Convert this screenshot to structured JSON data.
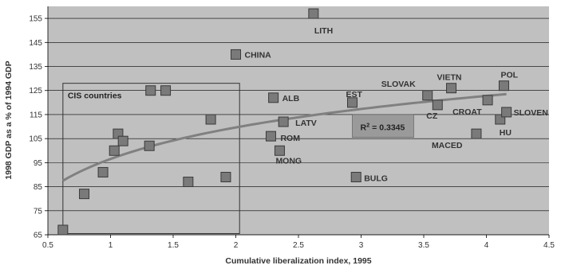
{
  "chart_data": {
    "type": "scatter",
    "xlabel": "Cumulative liberalization index, 1995",
    "ylabel": "1998 GDP as a % of 1994 GDP",
    "xlim": [
      0.5,
      4.5
    ],
    "ylim": [
      65,
      160
    ],
    "xticks": [
      "0.5",
      "1",
      "1.5",
      "2",
      "2.5",
      "3",
      "3.5",
      "4",
      "4.5"
    ],
    "yticks": [
      "65",
      "75",
      "85",
      "95",
      "105",
      "115",
      "125",
      "135",
      "145",
      "155"
    ],
    "xtick_values": [
      0.5,
      1,
      1.5,
      2,
      2.5,
      3,
      3.5,
      4,
      4.5
    ],
    "ytick_values": [
      65,
      75,
      85,
      95,
      105,
      115,
      125,
      135,
      145,
      155
    ],
    "grid": "horizontal",
    "colors": {
      "plot_background": "#c0c0c0",
      "marker_fill": "#7a7a7a",
      "marker_edge": "#3a3a3a",
      "trend_line": "#808080",
      "r2_box": "#9a9a9a"
    },
    "points": [
      {
        "x": 0.62,
        "y": 67,
        "label": ""
      },
      {
        "x": 0.79,
        "y": 82,
        "label": ""
      },
      {
        "x": 0.94,
        "y": 91,
        "label": ""
      },
      {
        "x": 1.03,
        "y": 100,
        "label": ""
      },
      {
        "x": 1.06,
        "y": 107,
        "label": ""
      },
      {
        "x": 1.1,
        "y": 104,
        "label": ""
      },
      {
        "x": 1.31,
        "y": 102,
        "label": ""
      },
      {
        "x": 1.32,
        "y": 125,
        "label": ""
      },
      {
        "x": 1.44,
        "y": 125,
        "label": ""
      },
      {
        "x": 1.62,
        "y": 87,
        "label": ""
      },
      {
        "x": 1.8,
        "y": 113,
        "label": ""
      },
      {
        "x": 1.92,
        "y": 89,
        "label": ""
      },
      {
        "x": 2.0,
        "y": 140,
        "label": "CHINA"
      },
      {
        "x": 2.3,
        "y": 122,
        "label": "ALB"
      },
      {
        "x": 2.28,
        "y": 106,
        "label": "ROM"
      },
      {
        "x": 2.38,
        "y": 112,
        "label": "LATV"
      },
      {
        "x": 2.35,
        "y": 100,
        "label": "MONG"
      },
      {
        "x": 2.62,
        "y": 157,
        "label": "LITH"
      },
      {
        "x": 2.93,
        "y": 120,
        "label": "EST"
      },
      {
        "x": 2.96,
        "y": 89,
        "label": "BULG"
      },
      {
        "x": 3.53,
        "y": 123,
        "label": "SLOVAK"
      },
      {
        "x": 3.61,
        "y": 119,
        "label": "CZ"
      },
      {
        "x": 3.72,
        "y": 126,
        "label": "VIETN"
      },
      {
        "x": 3.92,
        "y": 107,
        "label": "MACED"
      },
      {
        "x": 4.01,
        "y": 121,
        "label": "CROAT"
      },
      {
        "x": 4.11,
        "y": 113,
        "label": "HU"
      },
      {
        "x": 4.14,
        "y": 127,
        "label": "POL"
      },
      {
        "x": 4.16,
        "y": 116,
        "label": "SLOVEN"
      }
    ],
    "trend": {
      "type": "logarithmic",
      "x_start": 0.62,
      "x_end": 4.16,
      "y_start": 87.5,
      "y_end": 123.5
    },
    "annotations": {
      "group_box_label": "CIS countries",
      "group_box_x": [
        0.62,
        2.03
      ],
      "group_box_y": [
        65.5,
        128
      ],
      "r2_prefix": "R",
      "r2_superscript": "2",
      "r2_value": " = 0.3345",
      "r2_box_x": [
        2.93,
        3.42
      ],
      "r2_box_y": [
        105.5,
        115
      ]
    }
  }
}
